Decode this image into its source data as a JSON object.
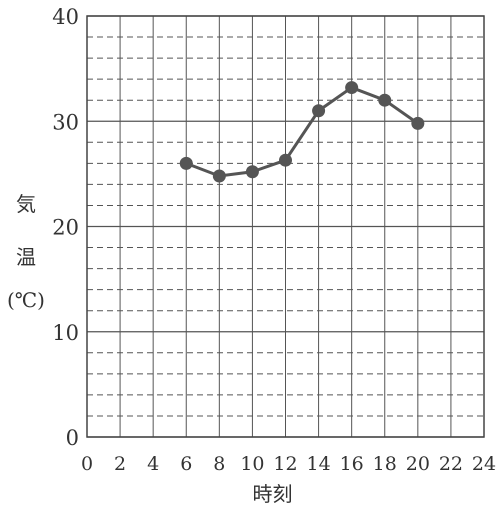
{
  "chart_data": {
    "type": "line",
    "xlabel": "時刻",
    "ylabel": "気温（℃）",
    "ylabel_chars": [
      "気",
      "温",
      "(℃)"
    ],
    "xlim": [
      0,
      24
    ],
    "ylim": [
      0,
      40
    ],
    "x_ticks": [
      0,
      2,
      4,
      6,
      8,
      10,
      12,
      14,
      16,
      18,
      20,
      22,
      24
    ],
    "y_ticks": [
      0,
      10,
      20,
      30,
      40
    ],
    "grid": true,
    "series": [
      {
        "x": [
          6,
          8,
          10,
          12,
          14,
          16,
          18,
          20
        ],
        "y": [
          26.0,
          24.8,
          25.2,
          26.3,
          31.0,
          33.2,
          32.0,
          29.8
        ]
      }
    ],
    "colors": {
      "line": "#555555",
      "marker": "#555555",
      "grid": "#555555"
    }
  }
}
